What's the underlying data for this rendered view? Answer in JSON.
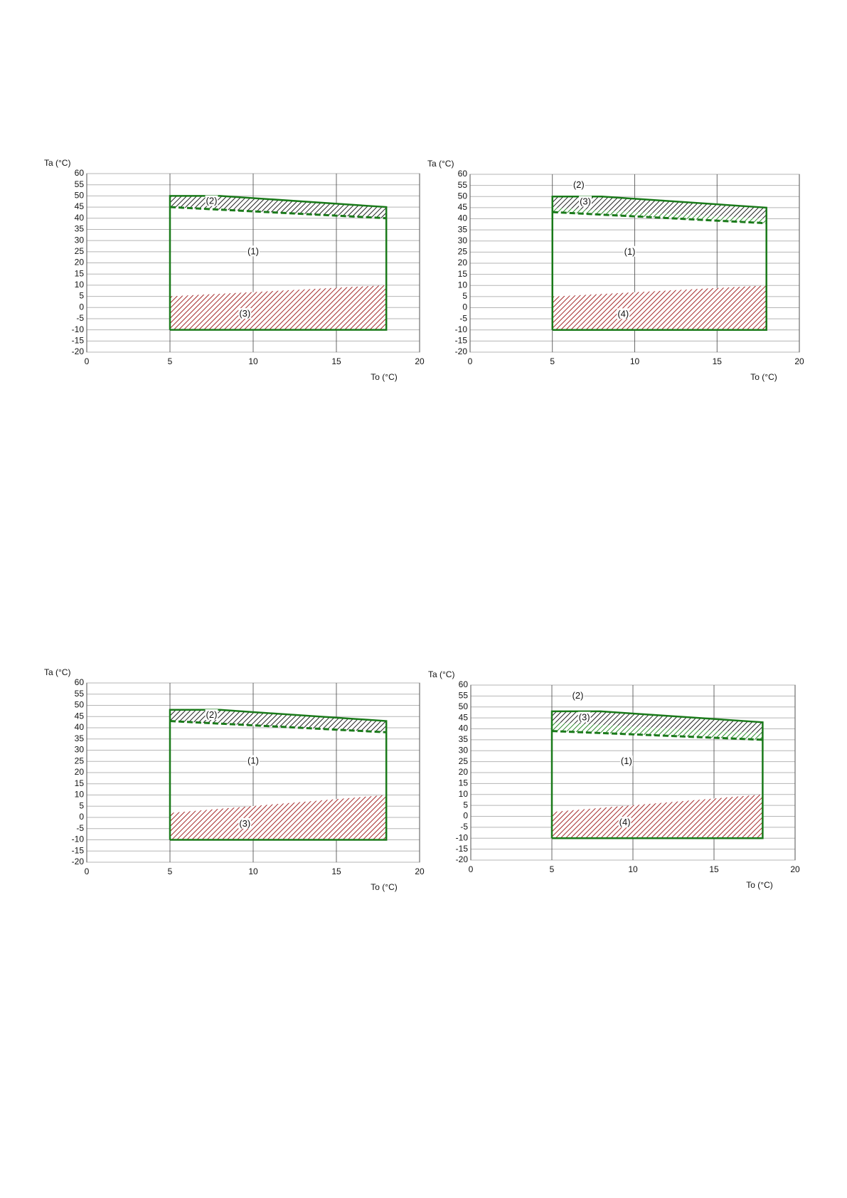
{
  "chart_data": [
    {
      "type": "area",
      "y_label": "Ta (°C)",
      "x_label": "To (°C)",
      "xlim": [
        0,
        20
      ],
      "ylim": [
        -20,
        60
      ],
      "xticks": [
        0,
        5,
        10,
        15,
        20
      ],
      "yticks": [
        -20,
        -15,
        -10,
        -5,
        0,
        5,
        10,
        15,
        20,
        25,
        30,
        35,
        40,
        45,
        50,
        55,
        60
      ],
      "grid": true,
      "series": [
        {
          "kind": "hatch",
          "color": "#a52a2a",
          "x": [
            5,
            18,
            18,
            5
          ],
          "values": [
            5,
            10,
            -10,
            -10
          ]
        },
        {
          "kind": "hatch",
          "color": "#222222",
          "x": [
            5,
            8,
            10,
            18,
            18,
            5
          ],
          "values": [
            50,
            50,
            49,
            45,
            40,
            45
          ]
        },
        {
          "kind": "dashed",
          "color": "#1a7a1a",
          "x": [
            5,
            18
          ],
          "values": [
            45,
            40
          ]
        },
        {
          "kind": "outline",
          "color": "#1a7a1a",
          "x": [
            5,
            5,
            8,
            10,
            18,
            18,
            5
          ],
          "values": [
            -10,
            50,
            50,
            49,
            45,
            -10,
            -10
          ]
        }
      ],
      "annotations": [
        {
          "text": "(1)",
          "x": 10,
          "y": 25
        },
        {
          "text": "(2)",
          "x": 7.5,
          "y": 47.5
        },
        {
          "text": "(3)",
          "x": 9.5,
          "y": -3
        }
      ]
    },
    {
      "type": "area",
      "y_label": "Ta (°C)",
      "x_label": "To (°C)",
      "xlim": [
        0,
        20
      ],
      "ylim": [
        -20,
        60
      ],
      "xticks": [
        0,
        5,
        10,
        15,
        20
      ],
      "yticks": [
        -20,
        -15,
        -10,
        -5,
        0,
        5,
        10,
        15,
        20,
        25,
        30,
        35,
        40,
        45,
        50,
        55,
        60
      ],
      "grid": true,
      "series": [
        {
          "kind": "hatch",
          "color": "#a52a2a",
          "x": [
            5,
            18,
            18,
            5
          ],
          "values": [
            5,
            10,
            -10,
            -10
          ]
        },
        {
          "kind": "hatch",
          "color": "#222222",
          "x": [
            5,
            8,
            10,
            18,
            18,
            5
          ],
          "values": [
            50,
            50,
            49,
            45,
            40,
            45
          ]
        },
        {
          "kind": "hatch",
          "color": "#2e8b2e",
          "x": [
            5,
            18,
            18,
            5
          ],
          "values": [
            45,
            40,
            38,
            43
          ]
        },
        {
          "kind": "dashed",
          "color": "#1a7a1a",
          "x": [
            5,
            18
          ],
          "values": [
            43,
            38
          ]
        },
        {
          "kind": "outline",
          "color": "#1a7a1a",
          "x": [
            5,
            5,
            8,
            10,
            18,
            18,
            5
          ],
          "values": [
            -10,
            50,
            50,
            49,
            45,
            -10,
            -10
          ]
        }
      ],
      "annotations": [
        {
          "text": "(1)",
          "x": 9.7,
          "y": 25
        },
        {
          "text": "(2)",
          "x": 6.6,
          "y": 55
        },
        {
          "text": "(3)",
          "x": 7,
          "y": 47.5
        },
        {
          "text": "(4)",
          "x": 9.3,
          "y": -3
        }
      ]
    },
    {
      "type": "area",
      "y_label": "Ta (°C)",
      "x_label": "To (°C)",
      "xlim": [
        0,
        20
      ],
      "ylim": [
        -20,
        60
      ],
      "xticks": [
        0,
        5,
        10,
        15,
        20
      ],
      "yticks": [
        -20,
        -15,
        -10,
        -5,
        0,
        5,
        10,
        15,
        20,
        25,
        30,
        35,
        40,
        45,
        50,
        55,
        60
      ],
      "grid": true,
      "series": [
        {
          "kind": "hatch",
          "color": "#a52a2a",
          "x": [
            5,
            18,
            18,
            5
          ],
          "values": [
            2,
            10,
            -10,
            -10
          ]
        },
        {
          "kind": "hatch",
          "color": "#222222",
          "x": [
            5,
            8,
            10,
            18,
            18,
            5
          ],
          "values": [
            48,
            48,
            47,
            43,
            38,
            43
          ]
        },
        {
          "kind": "dashed",
          "color": "#1a7a1a",
          "x": [
            5,
            18
          ],
          "values": [
            43,
            38
          ]
        },
        {
          "kind": "outline",
          "color": "#1a7a1a",
          "x": [
            5,
            5,
            8,
            10,
            18,
            18,
            5
          ],
          "values": [
            -10,
            48,
            48,
            47,
            43,
            -10,
            -10
          ]
        }
      ],
      "annotations": [
        {
          "text": "(1)",
          "x": 10,
          "y": 25
        },
        {
          "text": "(2)",
          "x": 7.5,
          "y": 45.5
        },
        {
          "text": "(3)",
          "x": 9.5,
          "y": -3
        }
      ]
    },
    {
      "type": "area",
      "y_label": "Ta (°C)",
      "x_label": "To (°C)",
      "xlim": [
        0,
        20
      ],
      "ylim": [
        -20,
        60
      ],
      "xticks": [
        0,
        5,
        10,
        15,
        20
      ],
      "yticks": [
        -20,
        -15,
        -10,
        -5,
        0,
        5,
        10,
        15,
        20,
        25,
        30,
        35,
        40,
        45,
        50,
        55,
        60
      ],
      "grid": true,
      "series": [
        {
          "kind": "hatch",
          "color": "#a52a2a",
          "x": [
            5,
            18,
            18,
            5
          ],
          "values": [
            2,
            10,
            -10,
            -10
          ]
        },
        {
          "kind": "hatch",
          "color": "#222222",
          "x": [
            5,
            8,
            10,
            18,
            18,
            5
          ],
          "values": [
            48,
            48,
            47,
            43,
            38,
            43
          ]
        },
        {
          "kind": "hatch",
          "color": "#2e8b2e",
          "x": [
            5,
            18,
            18,
            5
          ],
          "values": [
            43,
            38,
            35,
            39
          ]
        },
        {
          "kind": "dashed",
          "color": "#1a7a1a",
          "x": [
            5,
            18
          ],
          "values": [
            39,
            35
          ]
        },
        {
          "kind": "outline",
          "color": "#1a7a1a",
          "x": [
            5,
            5,
            8,
            10,
            18,
            18,
            5
          ],
          "values": [
            -10,
            48,
            48,
            47,
            43,
            -10,
            -10
          ]
        }
      ],
      "annotations": [
        {
          "text": "(1)",
          "x": 9.6,
          "y": 25
        },
        {
          "text": "(2)",
          "x": 6.6,
          "y": 55
        },
        {
          "text": "(3)",
          "x": 7,
          "y": 45
        },
        {
          "text": "(4)",
          "x": 9.5,
          "y": -3
        }
      ]
    }
  ]
}
